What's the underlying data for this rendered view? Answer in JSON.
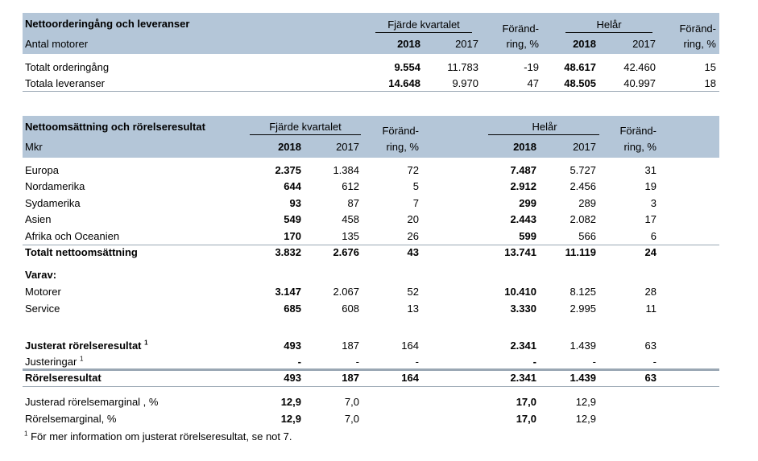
{
  "t1": {
    "title": "Nettoorderingång och leveranser",
    "subtitle": "Antal motorer",
    "q_label": "Fjärde kvartalet",
    "y_label": "Helår",
    "change_top": "Föränd-",
    "change_bottom": "ring, %",
    "change2_top": "Föränd-",
    "change2_bottom": "ring, %",
    "y2018": "2018",
    "y2017": "2017",
    "rows": [
      {
        "label": "Totalt orderingång",
        "q18": "9.554",
        "q17": "11.783",
        "qc": "-19",
        "h18": "48.617",
        "h17": "42.460",
        "hc": "15"
      },
      {
        "label": "Totala leveranser",
        "q18": "14.648",
        "q17": "9.970",
        "qc": "47",
        "h18": "48.505",
        "h17": "40.997",
        "hc": "18"
      }
    ]
  },
  "t2": {
    "title": "Nettoomsättning och rörelseresultat",
    "subtitle": "Mkr",
    "q_label": "Fjärde kvartalet",
    "y_label": "Helår",
    "change_top": "Föränd-",
    "change_bottom": "ring, %",
    "y2018": "2018",
    "y2017": "2017",
    "rows": [
      {
        "label": "Europa",
        "q18": "2.375",
        "q17": "1.384",
        "qc": "72",
        "h18": "7.487",
        "h17": "5.727",
        "hc": "31"
      },
      {
        "label": "Nordamerika",
        "q18": "644",
        "q17": "612",
        "qc": "5",
        "h18": "2.912",
        "h17": "2.456",
        "hc": "19"
      },
      {
        "label": "Sydamerika",
        "q18": "93",
        "q17": "87",
        "qc": "7",
        "h18": "299",
        "h17": "289",
        "hc": "3"
      },
      {
        "label": "Asien",
        "q18": "549",
        "q17": "458",
        "qc": "20",
        "h18": "2.443",
        "h17": "2.082",
        "hc": "17"
      },
      {
        "label": "Afrika och Oceanien",
        "q18": "170",
        "q17": "135",
        "qc": "26",
        "h18": "599",
        "h17": "566",
        "hc": "6"
      },
      {
        "label": "Totalt nettoomsättning",
        "q18": "3.832",
        "q17": "2.676",
        "qc": "43",
        "h18": "13.741",
        "h17": "11.119",
        "hc": "24"
      },
      {
        "label": "Varav:",
        "q18": "",
        "q17": "",
        "qc": "",
        "h18": "",
        "h17": "",
        "hc": ""
      },
      {
        "label": "Motorer",
        "q18": "3.147",
        "q17": "2.067",
        "qc": "52",
        "h18": "10.410",
        "h17": "8.125",
        "hc": "28"
      },
      {
        "label": "Service",
        "q18": "685",
        "q17": "608",
        "qc": "13",
        "h18": "3.330",
        "h17": "2.995",
        "hc": "11"
      },
      {
        "label": "Justerat rörelseresultat",
        "q18": "493",
        "q17": "187",
        "qc": "164",
        "h18": "2.341",
        "h17": "1.439",
        "hc": "63"
      },
      {
        "label": "Justeringar",
        "q18": "-",
        "q17": "-",
        "qc": "-",
        "h18": "-",
        "h17": "-",
        "hc": "-"
      },
      {
        "label": "Rörelseresultat",
        "q18": "493",
        "q17": "187",
        "qc": "164",
        "h18": "2.341",
        "h17": "1.439",
        "hc": "63"
      },
      {
        "label": "Justerad rörelsemarginal , %",
        "q18": "12,9",
        "q17": "7,0",
        "qc": "",
        "h18": "17,0",
        "h17": "12,9",
        "hc": ""
      },
      {
        "label": "Rörelsemarginal, %",
        "q18": "12,9",
        "q17": "7,0",
        "qc": "",
        "h18": "17,0",
        "h17": "12,9",
        "hc": ""
      }
    ],
    "footnote_mark": "1",
    "footnote": "För mer information om justerat rörelseresultat, se not 7."
  }
}
